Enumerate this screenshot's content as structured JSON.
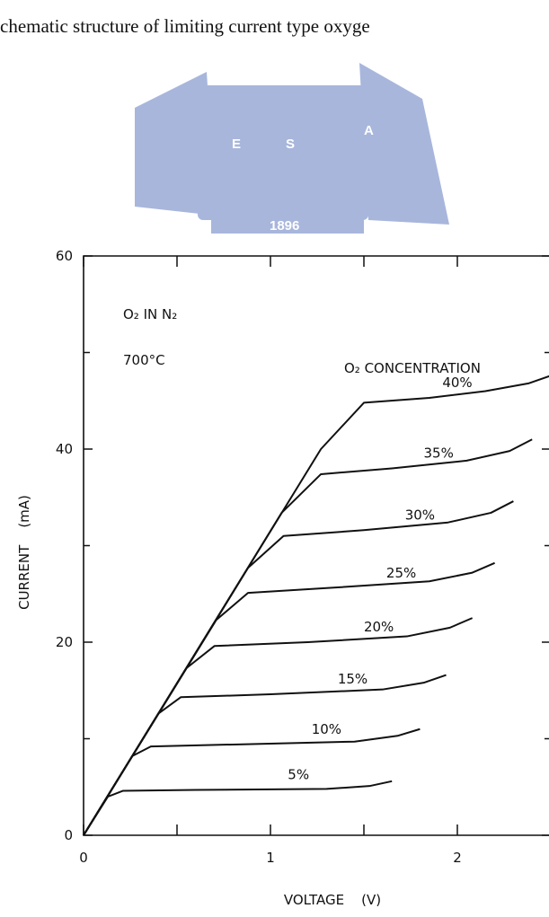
{
  "caption": "chematic structure of limiting current type oxyge",
  "watermark": {
    "letters": [
      "E",
      "S",
      "A"
    ],
    "year": "1896"
  },
  "chart_data": {
    "type": "line",
    "annotations": [
      "O₂ IN N₂",
      "700°C",
      "O₂ CONCENTRATION"
    ],
    "xlabel": "VOLTAGE    (V)",
    "ylabel": "CURRENT    (mA)",
    "xlim": [
      0,
      2.5
    ],
    "ylim": [
      0,
      60
    ],
    "xticks": [
      0,
      1,
      2
    ],
    "yticks": [
      0,
      20,
      40,
      60
    ],
    "xminor": [
      0.5,
      1.5
    ],
    "yminor": [
      10,
      30,
      50
    ],
    "series": [
      {
        "name": "5%",
        "color": "#111111",
        "x": [
          0,
          0.13,
          0.21,
          0.6,
          1.3,
          1.53,
          1.65
        ],
        "values": [
          0,
          4.0,
          4.6,
          4.7,
          4.8,
          5.1,
          5.6
        ]
      },
      {
        "name": "10%",
        "color": "#111111",
        "x": [
          0,
          0.26,
          0.36,
          0.8,
          1.45,
          1.68,
          1.8
        ],
        "values": [
          0,
          8.2,
          9.2,
          9.4,
          9.7,
          10.3,
          11
        ]
      },
      {
        "name": "15%",
        "color": "#111111",
        "x": [
          0,
          0.4,
          0.52,
          1.0,
          1.6,
          1.82,
          1.94
        ],
        "values": [
          0,
          12.6,
          14.3,
          14.6,
          15.1,
          15.8,
          16.6
        ]
      },
      {
        "name": "20%",
        "color": "#111111",
        "x": [
          0,
          0.55,
          0.7,
          1.2,
          1.73,
          1.96,
          2.08
        ],
        "values": [
          0,
          17.3,
          19.6,
          20.0,
          20.6,
          21.5,
          22.5
        ]
      },
      {
        "name": "25%",
        "color": "#111111",
        "x": [
          0,
          0.71,
          0.88,
          1.3,
          1.85,
          2.08,
          2.2
        ],
        "values": [
          0,
          22.3,
          25.1,
          25.6,
          26.3,
          27.2,
          28.2
        ]
      },
      {
        "name": "30%",
        "color": "#111111",
        "x": [
          0,
          0.88,
          1.07,
          1.5,
          1.95,
          2.18,
          2.3
        ],
        "values": [
          0,
          27.7,
          31.0,
          31.6,
          32.4,
          33.4,
          34.6
        ]
      },
      {
        "name": "35%",
        "color": "#111111",
        "x": [
          0,
          1.06,
          1.27,
          1.65,
          2.05,
          2.28,
          2.4
        ],
        "values": [
          0,
          33.4,
          37.4,
          38.0,
          38.8,
          39.8,
          41.0
        ]
      },
      {
        "name": "40%",
        "color": "#111111",
        "x": [
          0,
          1.27,
          1.5,
          1.85,
          2.15,
          2.38,
          2.5
        ],
        "values": [
          0,
          40.0,
          44.8,
          45.3,
          46.0,
          46.8,
          47.6
        ]
      }
    ]
  }
}
